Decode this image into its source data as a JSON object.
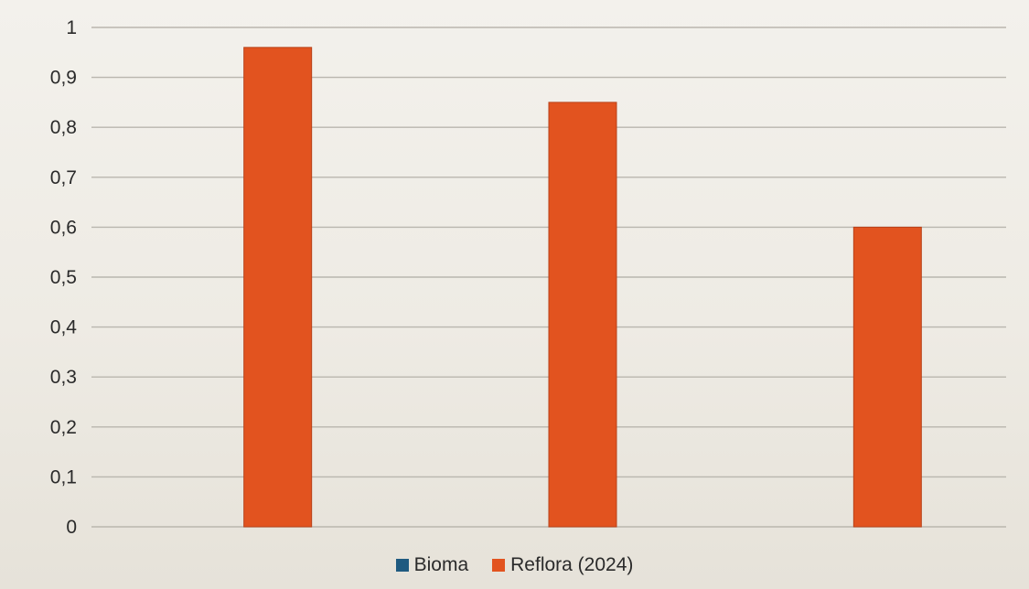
{
  "chart_data": {
    "type": "bar",
    "title": "",
    "xlabel": "",
    "ylabel": "",
    "categories": [
      "",
      "",
      ""
    ],
    "ylim": [
      0,
      1
    ],
    "y_ticks": [
      "0",
      "0,1",
      "0,2",
      "0,3",
      "0,4",
      "0,5",
      "0,6",
      "0,7",
      "0,8",
      "0,9",
      "1"
    ],
    "grid": true,
    "legend_position": "bottom",
    "series": [
      {
        "name": "Bioma",
        "color": "#1f5a80",
        "values": [
          0,
          0,
          0
        ]
      },
      {
        "name": "Reflora (2024)",
        "color": "#e2531f",
        "values": [
          0.96,
          0.85,
          0.6
        ]
      }
    ]
  },
  "legend": {
    "items": [
      {
        "label": "Bioma",
        "color": "#1f5a80"
      },
      {
        "label": "Reflora (2024)",
        "color": "#e2531f"
      }
    ]
  }
}
